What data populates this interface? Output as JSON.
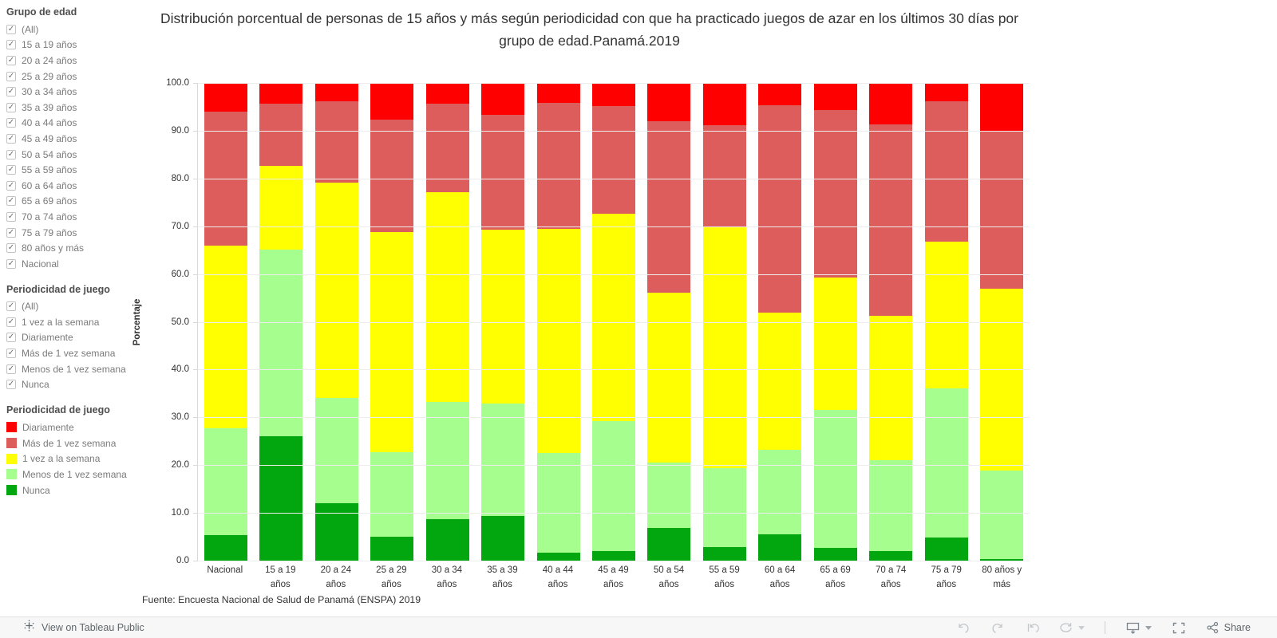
{
  "sidebar": {
    "filter_groups": [
      {
        "title": "Grupo de edad",
        "items": [
          "(All)",
          "15 a 19 años",
          "20 a 24 años",
          "25 a 29 años",
          "30 a 34 años",
          "35 a 39 años",
          "40 a 44 años",
          "45 a 49 años",
          "50 a 54 años",
          "55 a 59 años",
          "60 a 64 años",
          "65 a 69 años",
          "70 a 74 años",
          "75 a 79 años",
          "80 años y más",
          "Nacional"
        ],
        "checked": true
      },
      {
        "title": "Periodicidad de juego",
        "items": [
          "(All)",
          "1 vez a la semana",
          "Diariamente",
          "Más de 1 vez semana",
          "Menos de 1 vez semana",
          "Nunca"
        ],
        "checked": true
      }
    ],
    "legend": {
      "title": "Periodicidad de juego",
      "items": [
        {
          "label": "Diariamente",
          "color": "#fe0000"
        },
        {
          "label": "Más de 1 vez semana",
          "color": "#dd5c5c"
        },
        {
          "label": "1 vez a la semana",
          "color": "#ffff01"
        },
        {
          "label": "Menos de 1 vez semana",
          "color": "#a5fe8d"
        },
        {
          "label": "Nunca",
          "color": "#02a60f"
        }
      ]
    }
  },
  "chart_data": {
    "type": "bar",
    "stacked": true,
    "title": "Distribución porcentual de personas de 15 años y más según periodicidad con que ha practicado juegos de azar en los últimos 30 días por grupo de edad.Panamá.2019",
    "ylabel": "Porcentaje",
    "ylim": [
      0,
      100
    ],
    "ytick_step": 10,
    "ytick_decimals": 1,
    "grid": true,
    "legend_position": "left",
    "categories": [
      "Nacional",
      "15 a 19\naños",
      "20 a 24\naños",
      "25 a 29\naños",
      "30 a 34\naños",
      "35 a 39\naños",
      "40 a 44\naños",
      "45 a 49\naños",
      "50 a 54\naños",
      "55 a 59\naños",
      "60 a 64\naños",
      "65 a 69\naños",
      "70 a 74\naños",
      "75 a 79\naños",
      "80 años y\nmás"
    ],
    "series": [
      {
        "name": "Diariamente",
        "color": "#fe0000",
        "values": [
          6.0,
          4.4,
          3.9,
          7.7,
          4.4,
          6.7,
          4.1,
          4.9,
          8.0,
          8.8,
          4.7,
          5.6,
          8.7,
          3.8,
          10.1
        ]
      },
      {
        "name": "Más de 1 vez semana",
        "color": "#dd5c5c",
        "values": [
          28.0,
          12.9,
          16.9,
          23.5,
          18.4,
          24.1,
          26.4,
          22.5,
          35.9,
          21.5,
          43.3,
          35.2,
          40.1,
          29.5,
          32.9
        ]
      },
      {
        "name": "1 vez a la semana",
        "color": "#ffff01",
        "values": [
          38.3,
          17.6,
          45.1,
          46.1,
          43.9,
          36.3,
          47.0,
          43.4,
          35.6,
          50.4,
          28.8,
          27.7,
          30.2,
          30.7,
          38.2
        ]
      },
      {
        "name": "Menos de 1 vez semana",
        "color": "#a5fe8d",
        "values": [
          22.3,
          39.1,
          22.1,
          17.7,
          24.6,
          23.5,
          20.8,
          27.2,
          13.6,
          16.5,
          17.7,
          28.9,
          19.0,
          31.2,
          18.5
        ]
      },
      {
        "name": "Nunca",
        "color": "#02a60f",
        "values": [
          5.4,
          26.0,
          12.0,
          5.0,
          8.7,
          9.4,
          1.7,
          2.0,
          6.9,
          2.8,
          5.5,
          2.6,
          2.0,
          4.8,
          0.3
        ]
      }
    ],
    "source": "Fuente: Encuesta Nacional de Salud de Panamá (ENSPA) 2019"
  },
  "toolbar": {
    "view_on_label": "View on Tableau Public",
    "share_label": "Share",
    "icons": [
      "tableau-logo-icon",
      "undo-icon",
      "redo-icon",
      "replay-icon",
      "refresh-icon",
      "download-icon",
      "fullscreen-icon",
      "share-icon"
    ]
  }
}
